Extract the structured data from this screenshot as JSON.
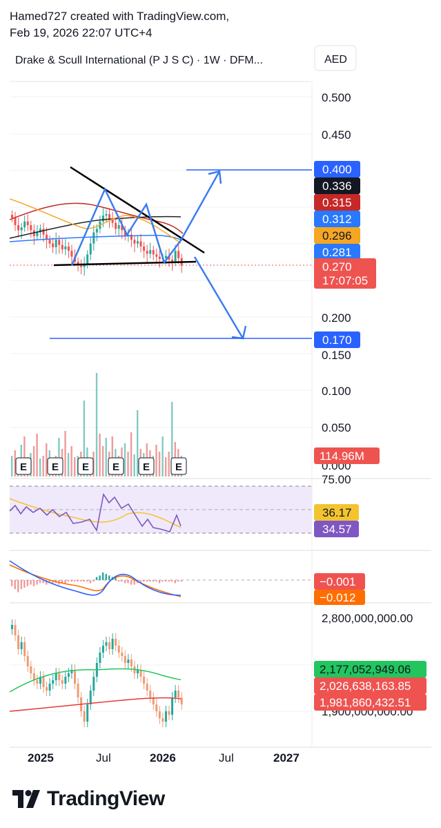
{
  "header": {
    "created_by": "Hamed727 created with TradingView.com,",
    "timestamp": "Feb 19, 2026 22:07 UTC+4"
  },
  "symbol": {
    "title": "Drake & Scull International (P J S C) · 1W · DFM...",
    "currency": "AED"
  },
  "brand": {
    "name": "TradingView"
  },
  "colors": {
    "up": "#26a69a",
    "down": "#ef5350",
    "blue": "#2962ff",
    "pattern_blue": "#3b7cf0",
    "ma_red": "#c62828",
    "ma_orange": "#f5a623",
    "ma_black": "#222222",
    "ma_blue": "#2979ff",
    "rsi_purple": "#7e57c2",
    "rsi_yellow": "#f4c430",
    "breadth_green": "#22c55e",
    "breadth_red": "#e53935"
  },
  "chart_data": [
    {
      "type": "line",
      "panel": "price",
      "title": "Drake & Scull International (P J S C) · 1W · DFM...",
      "y_axis": {
        "ticks": [
          "0.500",
          "0.450",
          "0.200",
          "0.150"
        ],
        "range": [
          0.14,
          0.52
        ]
      },
      "x_axis": {
        "ticks": [
          "2025",
          "Jul",
          "2026",
          "Jul",
          "2027"
        ]
      },
      "price_series": [
        0.335,
        0.325,
        0.318,
        0.322,
        0.33,
        0.325,
        0.318,
        0.31,
        0.315,
        0.32,
        0.312,
        0.305,
        0.3,
        0.295,
        0.305,
        0.298,
        0.292,
        0.296,
        0.29,
        0.282,
        0.275,
        0.27,
        0.268,
        0.272,
        0.285,
        0.3,
        0.315,
        0.32,
        0.33,
        0.338,
        0.34,
        0.333,
        0.328,
        0.32,
        0.325,
        0.318,
        0.31,
        0.312,
        0.305,
        0.3,
        0.303,
        0.296,
        0.29,
        0.286,
        0.291,
        0.285,
        0.282,
        0.279,
        0.28,
        0.283,
        0.278,
        0.275,
        0.29,
        0.28,
        0.27
      ],
      "price_labels": [
        {
          "value": "0.400",
          "color": "#2962ff"
        },
        {
          "value": "0.336",
          "color": "#131722"
        },
        {
          "value": "0.315",
          "color": "#c62828"
        },
        {
          "value": "0.312",
          "color": "#2979ff"
        },
        {
          "value": "0.296",
          "color": "#f5a623"
        },
        {
          "value": "0.281",
          "color": "#2979ff"
        },
        {
          "value": "0.270",
          "color": "#ef5350",
          "countdown": "17:07:05"
        },
        {
          "value": "0.170",
          "color": "#2962ff"
        }
      ],
      "drawings": {
        "target_up": 0.4,
        "target_down": 0.17,
        "pattern": "descending triangle with zig-zag swing arrows"
      }
    },
    {
      "type": "bar",
      "panel": "volume",
      "y_axis": {
        "ticks": [
          "0.100",
          "0.050",
          "0.000"
        ]
      },
      "last_value": "114.96M",
      "earnings_markers": [
        "E",
        "E",
        "E",
        "E",
        "E",
        "E"
      ]
    },
    {
      "type": "line",
      "panel": "rsi",
      "y_axis": {
        "ticks": [
          "75.00"
        ]
      },
      "series": [
        {
          "label": "36.17",
          "color": "#f4c430"
        },
        {
          "label": "34.57",
          "color": "#7e57c2"
        }
      ]
    },
    {
      "type": "bar",
      "panel": "macd",
      "series": [
        {
          "label": "−0.001",
          "color": "#ef5350"
        },
        {
          "label": "−0.012",
          "color": "#ff6d00"
        }
      ]
    },
    {
      "type": "line",
      "panel": "custom",
      "y_axis": {
        "ticks": [
          "2,800,000,000.00",
          "1,900,000,000.00"
        ]
      },
      "series": [
        {
          "label": "2,177,052,949.06",
          "color": "#22c55e"
        },
        {
          "label": "2,026,638,163.85",
          "color": "#ef5350"
        },
        {
          "label": "1,981,860,432.51",
          "color": "#ef5350"
        }
      ]
    }
  ]
}
